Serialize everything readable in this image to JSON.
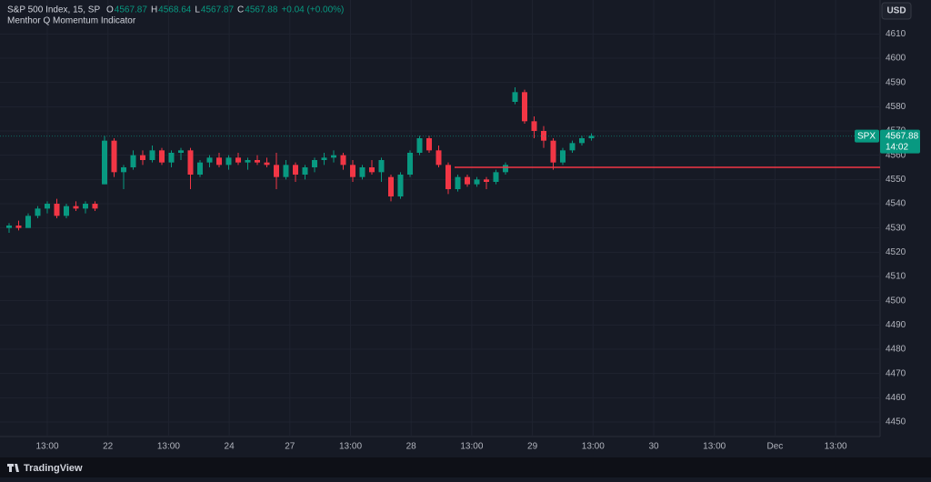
{
  "header": {
    "symbol": "S&P 500 Index, 15, SP",
    "ohlc_fields": [
      {
        "label": "O",
        "value": "4567.87"
      },
      {
        "label": "H",
        "value": "4568.64"
      },
      {
        "label": "L",
        "value": "4567.87"
      },
      {
        "label": "C",
        "value": "4567.88"
      }
    ],
    "change": "+0.04 (+0.00%)",
    "indicator": "Menthor Q Momentum Indicator"
  },
  "currency": "USD",
  "brand": "TradingView",
  "chart_data": {
    "type": "candlestick",
    "up_color": "#089981",
    "down_color": "#f23645",
    "ylim": [
      4444,
      4624
    ],
    "yticks": [
      4450,
      4460,
      4470,
      4480,
      4490,
      4500,
      4510,
      4520,
      4530,
      4540,
      4550,
      4560,
      4570,
      4580,
      4590,
      4600,
      4610
    ],
    "x_labels": [
      "13:00",
      "22",
      "13:00",
      "24",
      "27",
      "13:00",
      "28",
      "13:00",
      "29",
      "13:00",
      "30",
      "13:00",
      "Dec",
      "13:00"
    ],
    "ohlc": [
      [
        4530,
        4532,
        4528,
        4531
      ],
      [
        4531,
        4533,
        4529,
        4530
      ],
      [
        4530,
        4536,
        4530,
        4535
      ],
      [
        4535,
        4539,
        4534,
        4538
      ],
      [
        4538,
        4541,
        4536,
        4540
      ],
      [
        4540,
        4542,
        4534,
        4535
      ],
      [
        4535,
        4540,
        4534,
        4539
      ],
      [
        4539,
        4541,
        4537,
        4538
      ],
      [
        4538,
        4541,
        4536,
        4540
      ],
      [
        4540,
        4541,
        4537,
        4538
      ],
      [
        4548,
        4568,
        4548,
        4566
      ],
      [
        4566,
        4567,
        4551,
        4553
      ],
      [
        4553,
        4556,
        4546,
        4555
      ],
      [
        4555,
        4562,
        4554,
        4560
      ],
      [
        4560,
        4562,
        4556,
        4558
      ],
      [
        4558,
        4564,
        4557,
        4562
      ],
      [
        4562,
        4563,
        4556,
        4557
      ],
      [
        4557,
        4562,
        4555,
        4561
      ],
      [
        4561,
        4563,
        4558,
        4562
      ],
      [
        4562,
        4563,
        4546,
        4552
      ],
      [
        4552,
        4558,
        4551,
        4557
      ],
      [
        4557,
        4560,
        4555,
        4559
      ],
      [
        4559,
        4561,
        4555,
        4556
      ],
      [
        4556,
        4560,
        4554,
        4559
      ],
      [
        4559,
        4561,
        4556,
        4557
      ],
      [
        4557,
        4559,
        4554,
        4558
      ],
      [
        4558,
        4560,
        4556,
        4557
      ],
      [
        4557,
        4559,
        4555,
        4556
      ],
      [
        4556,
        4561,
        4546,
        4551
      ],
      [
        4551,
        4558,
        4550,
        4556
      ],
      [
        4556,
        4557,
        4549,
        4552
      ],
      [
        4552,
        4556,
        4550,
        4555
      ],
      [
        4555,
        4559,
        4553,
        4558
      ],
      [
        4558,
        4561,
        4556,
        4559
      ],
      [
        4559,
        4562,
        4557,
        4560
      ],
      [
        4560,
        4561,
        4554,
        4556
      ],
      [
        4556,
        4558,
        4549,
        4551
      ],
      [
        4551,
        4556,
        4550,
        4555
      ],
      [
        4555,
        4558,
        4552,
        4553
      ],
      [
        4553,
        4559,
        4549,
        4558
      ],
      [
        4551,
        4552,
        4541,
        4543
      ],
      [
        4543,
        4553,
        4542,
        4552
      ],
      [
        4552,
        4562,
        4551,
        4561
      ],
      [
        4561,
        4568,
        4560,
        4567
      ],
      [
        4567,
        4568,
        4561,
        4562
      ],
      [
        4562,
        4564,
        4555,
        4556
      ],
      [
        4556,
        4557,
        4544,
        4546
      ],
      [
        4546,
        4552,
        4545,
        4551
      ],
      [
        4551,
        4552,
        4547,
        4548
      ],
      [
        4548,
        4551,
        4547,
        4550
      ],
      [
        4550,
        4551,
        4546,
        4549
      ],
      [
        4549,
        4554,
        4548,
        4553
      ],
      [
        4553,
        4557,
        4552,
        4556
      ],
      [
        4582,
        4588,
        4581,
        4586
      ],
      [
        4586,
        4587,
        4573,
        4574
      ],
      [
        4574,
        4576,
        4567,
        4570
      ],
      [
        4570,
        4572,
        4563,
        4566
      ],
      [
        4566,
        4567,
        4554,
        4557
      ],
      [
        4557,
        4563,
        4556,
        4562
      ],
      [
        4562,
        4566,
        4561,
        4565
      ],
      [
        4565,
        4568,
        4564,
        4567
      ],
      [
        4567,
        4569,
        4566,
        4568
      ]
    ],
    "level": 4555,
    "level_color": "#f23645",
    "symbol_tag": "SPX",
    "last_price": 4567.88,
    "countdown": "14:02"
  }
}
